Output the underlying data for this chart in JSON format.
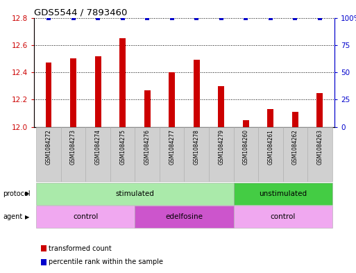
{
  "title": "GDS5544 / 7893460",
  "samples": [
    "GSM1084272",
    "GSM1084273",
    "GSM1084274",
    "GSM1084275",
    "GSM1084276",
    "GSM1084277",
    "GSM1084278",
    "GSM1084279",
    "GSM1084260",
    "GSM1084261",
    "GSM1084262",
    "GSM1084263"
  ],
  "bar_values": [
    12.47,
    12.5,
    12.52,
    12.65,
    12.27,
    12.4,
    12.49,
    12.3,
    12.05,
    12.13,
    12.11,
    12.25
  ],
  "percentile_values": [
    100,
    100,
    100,
    100,
    100,
    100,
    100,
    100,
    100,
    100,
    100,
    100
  ],
  "ylim_left": [
    12.0,
    12.8
  ],
  "ylim_right": [
    0,
    100
  ],
  "yticks_left": [
    12.0,
    12.2,
    12.4,
    12.6,
    12.8
  ],
  "yticks_right": [
    0,
    25,
    50,
    75,
    100
  ],
  "bar_color": "#cc0000",
  "dot_color": "#0000cc",
  "bar_width": 0.25,
  "protocol_groups": [
    {
      "label": "stimulated",
      "start": 0,
      "end": 7,
      "color": "#aaeaaa"
    },
    {
      "label": "unstimulated",
      "start": 8,
      "end": 11,
      "color": "#44cc44"
    }
  ],
  "agent_groups": [
    {
      "label": "control",
      "start": 0,
      "end": 3,
      "color": "#f0a8f0"
    },
    {
      "label": "edelfosine",
      "start": 4,
      "end": 7,
      "color": "#cc55cc"
    },
    {
      "label": "control",
      "start": 8,
      "end": 11,
      "color": "#f0a8f0"
    }
  ],
  "legend_bar_label": "transformed count",
  "legend_dot_label": "percentile rank within the sample",
  "protocol_label": "protocol",
  "agent_label": "agent",
  "left_axis_color": "#cc0000",
  "right_axis_color": "#0000cc",
  "background_color": "#ffffff"
}
